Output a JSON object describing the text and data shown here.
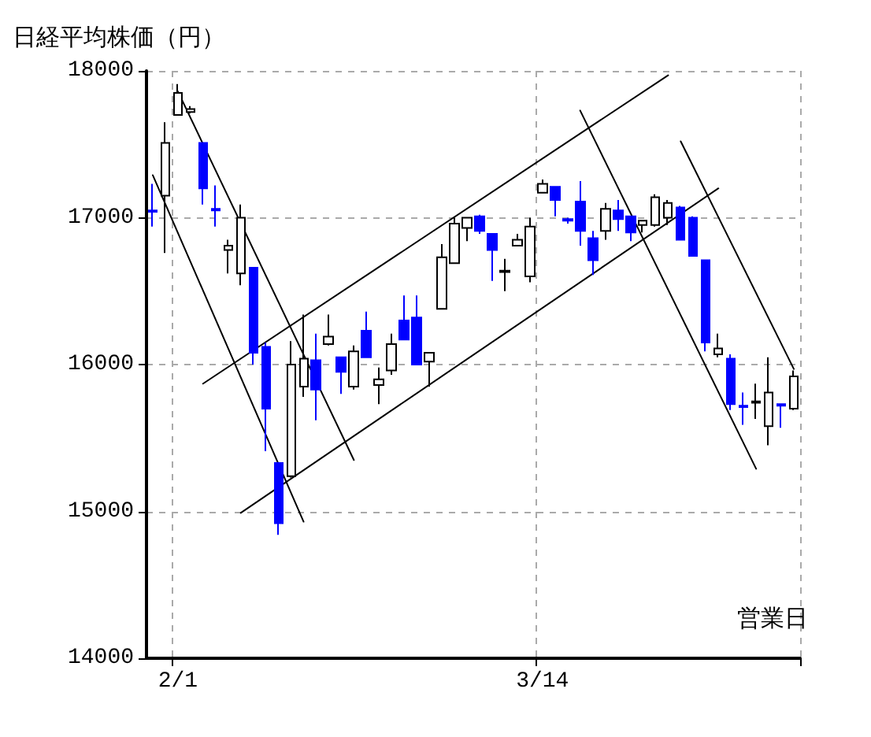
{
  "chart_data": {
    "type": "candlestick",
    "ylabel": "日経平均株価（円）",
    "xlabel": "営業日",
    "categories": [
      null,
      null,
      "2/1",
      null,
      null,
      null,
      null,
      null,
      null,
      null,
      null,
      null,
      null,
      null,
      null,
      null,
      null,
      null,
      null,
      null,
      null,
      null,
      null,
      null,
      null,
      null,
      null,
      null,
      null,
      null,
      null,
      "3/14",
      null,
      null,
      null,
      null,
      null,
      null,
      null,
      null,
      null,
      null,
      null,
      null,
      null,
      null,
      null,
      null,
      null,
      null,
      null,
      null
    ],
    "ylim": [
      14000,
      18000
    ],
    "yticks": [
      14000,
      15000,
      16000,
      17000,
      18000
    ],
    "grid": true,
    "series": [
      {
        "ohlc": [
          [
            17050,
            17230,
            16940,
            17040
          ],
          [
            17150,
            17650,
            16760,
            17510
          ],
          [
            17700,
            17910,
            17700,
            17850
          ],
          [
            17720,
            17760,
            17710,
            17740
          ],
          [
            17510,
            17510,
            17090,
            17200
          ],
          [
            17060,
            17220,
            16940,
            17050
          ],
          [
            16780,
            16850,
            16620,
            16810
          ],
          [
            16620,
            17090,
            16540,
            17000
          ],
          [
            16660,
            16660,
            16000,
            16080
          ],
          [
            16120,
            16150,
            15410,
            15700
          ],
          [
            15330,
            15330,
            14840,
            14920
          ],
          [
            15240,
            16160,
            15230,
            16000
          ],
          [
            15850,
            16340,
            15780,
            16040
          ],
          [
            16030,
            16210,
            15620,
            15830
          ],
          [
            16140,
            16340,
            16130,
            16190
          ],
          [
            16050,
            16050,
            15800,
            15950
          ],
          [
            15850,
            16130,
            15830,
            16090
          ],
          [
            16230,
            16360,
            16050,
            16050
          ],
          [
            15860,
            15980,
            15730,
            15900
          ],
          [
            15960,
            16210,
            15930,
            16140
          ],
          [
            16300,
            16470,
            16170,
            16170
          ],
          [
            16320,
            16470,
            16000,
            16000
          ],
          [
            16020,
            16080,
            15850,
            16080
          ],
          [
            16380,
            16820,
            16380,
            16730
          ],
          [
            16690,
            17000,
            16690,
            16960
          ],
          [
            16930,
            17000,
            16840,
            17000
          ],
          [
            17010,
            17020,
            16890,
            16910
          ],
          [
            16890,
            16890,
            16570,
            16780
          ],
          [
            16630,
            16720,
            16500,
            16640
          ],
          [
            16810,
            16890,
            16810,
            16850
          ],
          [
            16600,
            17000,
            16560,
            16940
          ],
          [
            17170,
            17260,
            17170,
            17230
          ],
          [
            17210,
            17210,
            17010,
            17120
          ],
          [
            16990,
            17000,
            16960,
            16980
          ],
          [
            17110,
            17250,
            16810,
            16910
          ],
          [
            16860,
            16910,
            16610,
            16710
          ],
          [
            16910,
            17100,
            16850,
            17060
          ],
          [
            17050,
            17120,
            16910,
            16990
          ],
          [
            17010,
            17010,
            16840,
            16900
          ],
          [
            16950,
            16980,
            16900,
            16980
          ],
          [
            16950,
            17160,
            16940,
            17140
          ],
          [
            17000,
            17120,
            16950,
            17100
          ],
          [
            17070,
            17080,
            16850,
            16850
          ],
          [
            17000,
            17010,
            16740,
            16740
          ],
          [
            16710,
            16710,
            16090,
            16150
          ],
          [
            16070,
            16210,
            16050,
            16110
          ],
          [
            16040,
            16070,
            15690,
            15730
          ],
          [
            15720,
            15810,
            15590,
            15710
          ],
          [
            15740,
            15870,
            15630,
            15750
          ],
          [
            15580,
            16050,
            15450,
            15810
          ],
          [
            15730,
            15730,
            15570,
            15720
          ],
          [
            15700,
            15960,
            15690,
            15920
          ]
        ],
        "colors": [
          "#0000ff",
          "#ffffff",
          "#ffffff",
          "#ffffff",
          "#0000ff",
          "#0000ff",
          "#ffffff",
          "#ffffff",
          "#0000ff",
          "#0000ff",
          "#0000ff",
          "#ffffff",
          "#ffffff",
          "#0000ff",
          "#ffffff",
          "#0000ff",
          "#ffffff",
          "#0000ff",
          "#ffffff",
          "#ffffff",
          "#0000ff",
          "#0000ff",
          "#ffffff",
          "#ffffff",
          "#ffffff",
          "#ffffff",
          "#0000ff",
          "#0000ff",
          "#ffffff",
          "#ffffff",
          "#ffffff",
          "#ffffff",
          "#0000ff",
          "#0000ff",
          "#0000ff",
          "#0000ff",
          "#ffffff",
          "#0000ff",
          "#0000ff",
          "#ffffff",
          "#ffffff",
          "#ffffff",
          "#0000ff",
          "#0000ff",
          "#0000ff",
          "#ffffff",
          "#0000ff",
          "#0000ff",
          "#ffffff",
          "#ffffff",
          "#0000ff",
          "#ffffff"
        ]
      },
      {
        "type": "line",
        "color": "#000000",
        "values": [
          17290,
          null,
          null,
          null,
          null,
          null,
          null,
          null,
          null,
          null,
          null,
          null,
          14930,
          null,
          null,
          null,
          null,
          null,
          null,
          null,
          null,
          null,
          null,
          null,
          null,
          null,
          null,
          null,
          null,
          null,
          null,
          null,
          null,
          null,
          null,
          null,
          null,
          null,
          null,
          null,
          null,
          null,
          null,
          null,
          null,
          null,
          null,
          null,
          null,
          null,
          null,
          null
        ]
      },
      {
        "type": "line",
        "color": "#000000",
        "values": [
          null,
          null,
          17860,
          null,
          null,
          null,
          null,
          null,
          null,
          null,
          null,
          null,
          null,
          null,
          null,
          null,
          15350,
          null,
          null,
          null,
          null,
          null,
          null,
          null,
          null,
          null,
          null,
          null,
          null,
          null,
          null,
          null,
          null,
          null,
          null,
          null,
          null,
          null,
          null,
          null,
          null,
          null,
          null,
          null,
          null,
          null,
          null,
          null,
          null,
          null,
          null,
          null
        ]
      },
      {
        "type": "line",
        "color": "#000000",
        "values": [
          null,
          null,
          null,
          null,
          15870,
          null,
          null,
          null,
          null,
          null,
          null,
          null,
          null,
          null,
          null,
          null,
          null,
          null,
          null,
          null,
          null,
          null,
          null,
          null,
          null,
          null,
          null,
          null,
          null,
          null,
          null,
          null,
          null,
          null,
          null,
          null,
          null,
          null,
          null,
          null,
          null,
          17970,
          null,
          null,
          null,
          null,
          null,
          null,
          null,
          null,
          null,
          null
        ]
      },
      {
        "type": "line",
        "color": "#000000",
        "values": [
          null,
          null,
          null,
          null,
          null,
          null,
          null,
          14990,
          null,
          null,
          null,
          null,
          null,
          null,
          null,
          null,
          null,
          null,
          null,
          null,
          null,
          null,
          null,
          null,
          null,
          null,
          null,
          null,
          null,
          null,
          null,
          null,
          null,
          null,
          null,
          null,
          null,
          null,
          null,
          null,
          null,
          null,
          null,
          null,
          null,
          17200,
          null,
          null,
          null,
          null,
          null,
          null
        ]
      },
      {
        "type": "line",
        "color": "#000000",
        "values": [
          null,
          null,
          null,
          null,
          null,
          null,
          null,
          null,
          null,
          null,
          null,
          null,
          null,
          null,
          null,
          null,
          null,
          null,
          null,
          null,
          null,
          null,
          null,
          null,
          null,
          null,
          null,
          null,
          null,
          null,
          null,
          null,
          null,
          null,
          17730,
          null,
          null,
          null,
          null,
          null,
          null,
          null,
          null,
          null,
          null,
          null,
          null,
          null,
          15290,
          null,
          null,
          null
        ]
      },
      {
        "type": "line",
        "color": "#000000",
        "values": [
          null,
          null,
          null,
          null,
          null,
          null,
          null,
          null,
          null,
          null,
          null,
          null,
          null,
          null,
          null,
          null,
          null,
          null,
          null,
          null,
          null,
          null,
          null,
          null,
          null,
          null,
          null,
          null,
          null,
          null,
          null,
          null,
          null,
          null,
          null,
          null,
          null,
          null,
          null,
          null,
          null,
          null,
          17520,
          null,
          null,
          null,
          null,
          null,
          null,
          null,
          null,
          15970
        ]
      }
    ]
  }
}
